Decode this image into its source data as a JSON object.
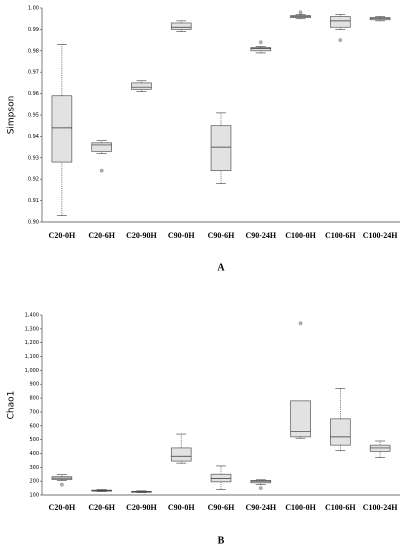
{
  "chart_data": [
    {
      "type": "box",
      "title": "A",
      "ylabel": "Simpson",
      "categories": [
        "C20-0H",
        "C20-6H",
        "C20-90H",
        "C90-0H",
        "C90-6H",
        "C90-24H",
        "C100-0H",
        "C100-6H",
        "C100-24H"
      ],
      "boxes": [
        {
          "low": 0.903,
          "q1": 0.928,
          "median": 0.944,
          "q3": 0.959,
          "high": 0.983,
          "outliers": []
        },
        {
          "low": 0.932,
          "q1": 0.933,
          "median": 0.936,
          "q3": 0.937,
          "high": 0.938,
          "outliers": [
            0.924
          ]
        },
        {
          "low": 0.961,
          "q1": 0.962,
          "median": 0.963,
          "q3": 0.965,
          "high": 0.966,
          "outliers": []
        },
        {
          "low": 0.989,
          "q1": 0.99,
          "median": 0.991,
          "q3": 0.993,
          "high": 0.994,
          "outliers": []
        },
        {
          "low": 0.918,
          "q1": 0.924,
          "median": 0.935,
          "q3": 0.945,
          "high": 0.951,
          "outliers": []
        },
        {
          "low": 0.979,
          "q1": 0.98,
          "median": 0.981,
          "q3": 0.9815,
          "high": 0.982,
          "outliers": [
            0.984
          ]
        },
        {
          "low": 0.995,
          "q1": 0.9955,
          "median": 0.996,
          "q3": 0.9965,
          "high": 0.997,
          "outliers": [
            0.998
          ]
        },
        {
          "low": 0.99,
          "q1": 0.991,
          "median": 0.994,
          "q3": 0.996,
          "high": 0.997,
          "outliers": [
            0.985
          ]
        },
        {
          "low": 0.994,
          "q1": 0.9945,
          "median": 0.995,
          "q3": 0.9955,
          "high": 0.996,
          "outliers": []
        }
      ],
      "color": "#e2e2e2",
      "ylim": [
        0.9,
        1.0
      ],
      "yticks": [
        {
          "value": 0.9,
          "label": "0.90"
        },
        0.91,
        0.92,
        0.93,
        0.94,
        0.95,
        0.96,
        0.97,
        0.98,
        0.99,
        {
          "value": 1.0,
          "label": "1.00"
        }
      ]
    },
    {
      "type": "box",
      "title": "B",
      "ylabel": "Chao1",
      "categories": [
        "C20-0H",
        "C20-6H",
        "C20-90H",
        "C90-0H",
        "C90-6H",
        "C90-24H",
        "C100-0H",
        "C100-6H",
        "C100-24H"
      ],
      "boxes": [
        {
          "low": 205,
          "q1": 212,
          "median": 222,
          "q3": 232,
          "high": 248,
          "outliers": [
            175
          ]
        },
        {
          "low": 125,
          "q1": 128,
          "median": 132,
          "q3": 135,
          "high": 140,
          "outliers": []
        },
        {
          "low": 118,
          "q1": 120,
          "median": 123,
          "q3": 126,
          "high": 130,
          "outliers": []
        },
        {
          "low": 330,
          "q1": 345,
          "median": 380,
          "q3": 440,
          "high": 540,
          "outliers": []
        },
        {
          "low": 140,
          "q1": 195,
          "median": 220,
          "q3": 250,
          "high": 310,
          "outliers": []
        },
        {
          "low": 175,
          "q1": 188,
          "median": 200,
          "q3": 205,
          "high": 210,
          "outliers": [
            150
          ]
        },
        {
          "low": 510,
          "q1": 520,
          "median": 560,
          "q3": 780,
          "high": 780,
          "outliers": [
            1340
          ]
        },
        {
          "low": 420,
          "q1": 460,
          "median": 520,
          "q3": 650,
          "high": 870,
          "outliers": []
        },
        {
          "low": 370,
          "q1": 415,
          "median": 440,
          "q3": 460,
          "high": 490,
          "outliers": []
        }
      ],
      "color": "#e2e2e2",
      "ylim": [
        100,
        1400
      ],
      "yticks": [
        100,
        200,
        300,
        400,
        500,
        600,
        700,
        800,
        900,
        {
          "value": 1000,
          "label": "1,000"
        },
        {
          "value": 1100,
          "label": "1,100"
        },
        {
          "value": 1200,
          "label": "1,200"
        },
        {
          "value": 1300,
          "label": "1,300"
        },
        {
          "value": 1400,
          "label": "1,400"
        }
      ]
    }
  ]
}
